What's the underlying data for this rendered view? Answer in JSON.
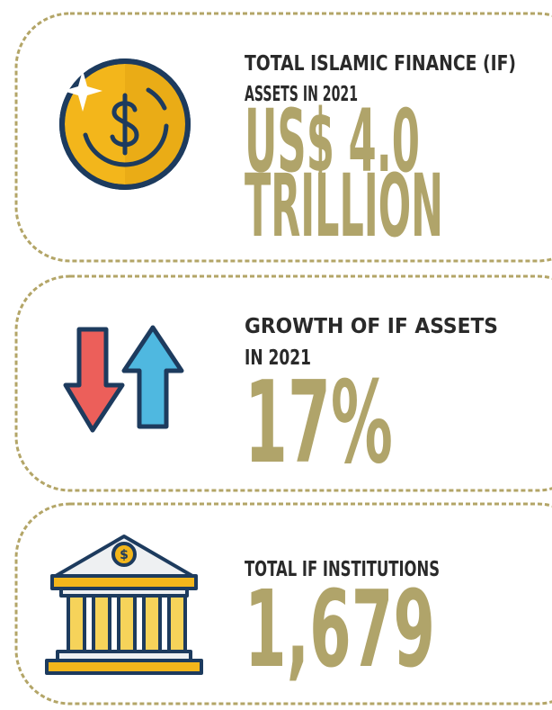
{
  "cards": [
    {
      "label": [
        "TOTAL ISLAMIC FINANCE (IF)",
        "ASSETS IN 2021"
      ],
      "value": [
        "US$ 4.0",
        "TRILLION"
      ]
    },
    {
      "label": [
        "GROWTH OF IF ASSETS",
        "IN 2021"
      ],
      "value": [
        "17%"
      ]
    },
    {
      "label": [
        "TOTAL IF INSTITUTIONS"
      ],
      "value": [
        "1,679"
      ]
    }
  ]
}
